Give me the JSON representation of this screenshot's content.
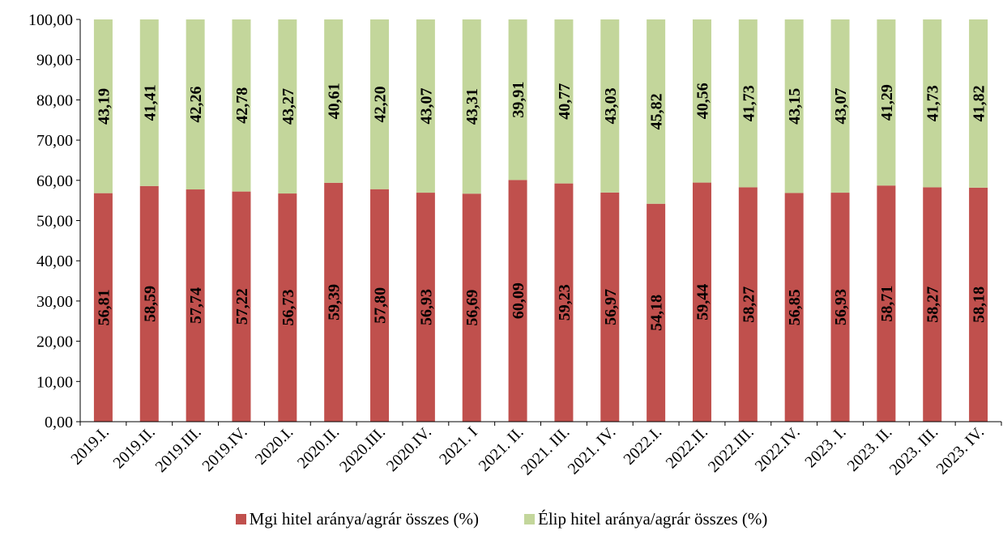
{
  "chart_data": {
    "type": "bar",
    "stacked": true,
    "categories": [
      "2019.I.",
      "2019.II.",
      "2019.III.",
      "2019.IV.",
      "2020.I.",
      "2020.II.",
      "2020.III.",
      "2020.IV.",
      "2021. I",
      "2021. II.",
      "2021. III.",
      "2021. IV.",
      "2022.I.",
      "2022.II.",
      "2022.III.",
      "2022.IV.",
      "2023. I.",
      "2023. II.",
      "2023. III.",
      "2023. IV."
    ],
    "series": [
      {
        "name": "Mgi hitel aránya/agrár összes (%)",
        "color": "#c0504d",
        "values": [
          56.81,
          58.59,
          57.74,
          57.22,
          56.73,
          59.39,
          57.8,
          56.93,
          56.69,
          60.09,
          59.23,
          56.97,
          54.18,
          59.44,
          58.27,
          56.85,
          56.93,
          58.71,
          58.27,
          58.18
        ],
        "labels": [
          "56,81",
          "58,59",
          "57,74",
          "57,22",
          "56,73",
          "59,39",
          "57,80",
          "56,93",
          "56,69",
          "60,09",
          "59,23",
          "56,97",
          "54,18",
          "59,44",
          "58,27",
          "56,85",
          "56,93",
          "58,71",
          "58,27",
          "58,18"
        ]
      },
      {
        "name": "Élip hitel aránya/agrár összes (%)",
        "color": "#c3d69b",
        "values": [
          43.19,
          41.41,
          42.26,
          42.78,
          43.27,
          40.61,
          42.2,
          43.07,
          43.31,
          39.91,
          40.77,
          43.03,
          45.82,
          40.56,
          41.73,
          43.15,
          43.07,
          41.29,
          41.73,
          41.82
        ],
        "labels": [
          "43,19",
          "41,41",
          "42,26",
          "42,78",
          "43,27",
          "40,61",
          "42,20",
          "43,07",
          "43,31",
          "39,91",
          "40,77",
          "43,03",
          "45,82",
          "40,56",
          "41,73",
          "43,15",
          "43,07",
          "41,29",
          "41,73",
          "41,82"
        ]
      }
    ],
    "ylim": [
      0,
      100
    ],
    "yticks": [
      "0,00",
      "10,00",
      "20,00",
      "30,00",
      "40,00",
      "50,00",
      "60,00",
      "70,00",
      "80,00",
      "90,00",
      "100,00"
    ],
    "grid": false,
    "legend_position": "bottom"
  }
}
